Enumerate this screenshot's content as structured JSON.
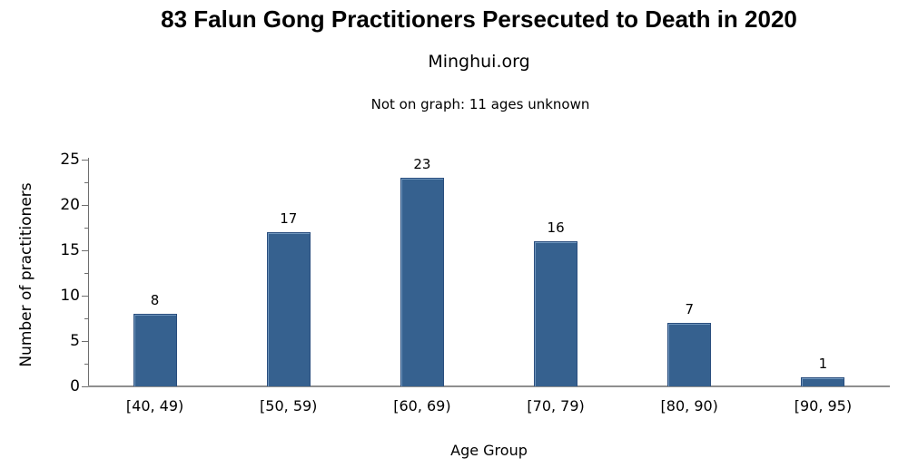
{
  "chart_data": {
    "type": "bar",
    "title": "83 Falun Gong Practitioners Persecuted to Death in 2020",
    "subtitle": "Minghui.org",
    "annotation": "Not on graph: 11 ages unknown",
    "categories": [
      "[40, 49)",
      "[50, 59)",
      "[60, 69)",
      "[70, 79)",
      "[80, 90)",
      "[90, 95)"
    ],
    "values": [
      8,
      17,
      23,
      16,
      7,
      1
    ],
    "data_labels_shown": true,
    "xlabel": "Age Group",
    "ylabel": "Number of practitioners",
    "ylim": [
      0,
      25
    ],
    "yticks": [
      0,
      5,
      10,
      15,
      20,
      25
    ],
    "minor_yticks": [
      2.5,
      7.5,
      12.5,
      17.5,
      22.5
    ],
    "grid": false,
    "legend": false,
    "bar_color": "#36618F",
    "bar_border_color": "#2A4E7E",
    "axis_color": "#6e6e6e",
    "baseline_color": "#8f8f8f",
    "text_color": "#000000",
    "background_color": "#ffffff"
  }
}
